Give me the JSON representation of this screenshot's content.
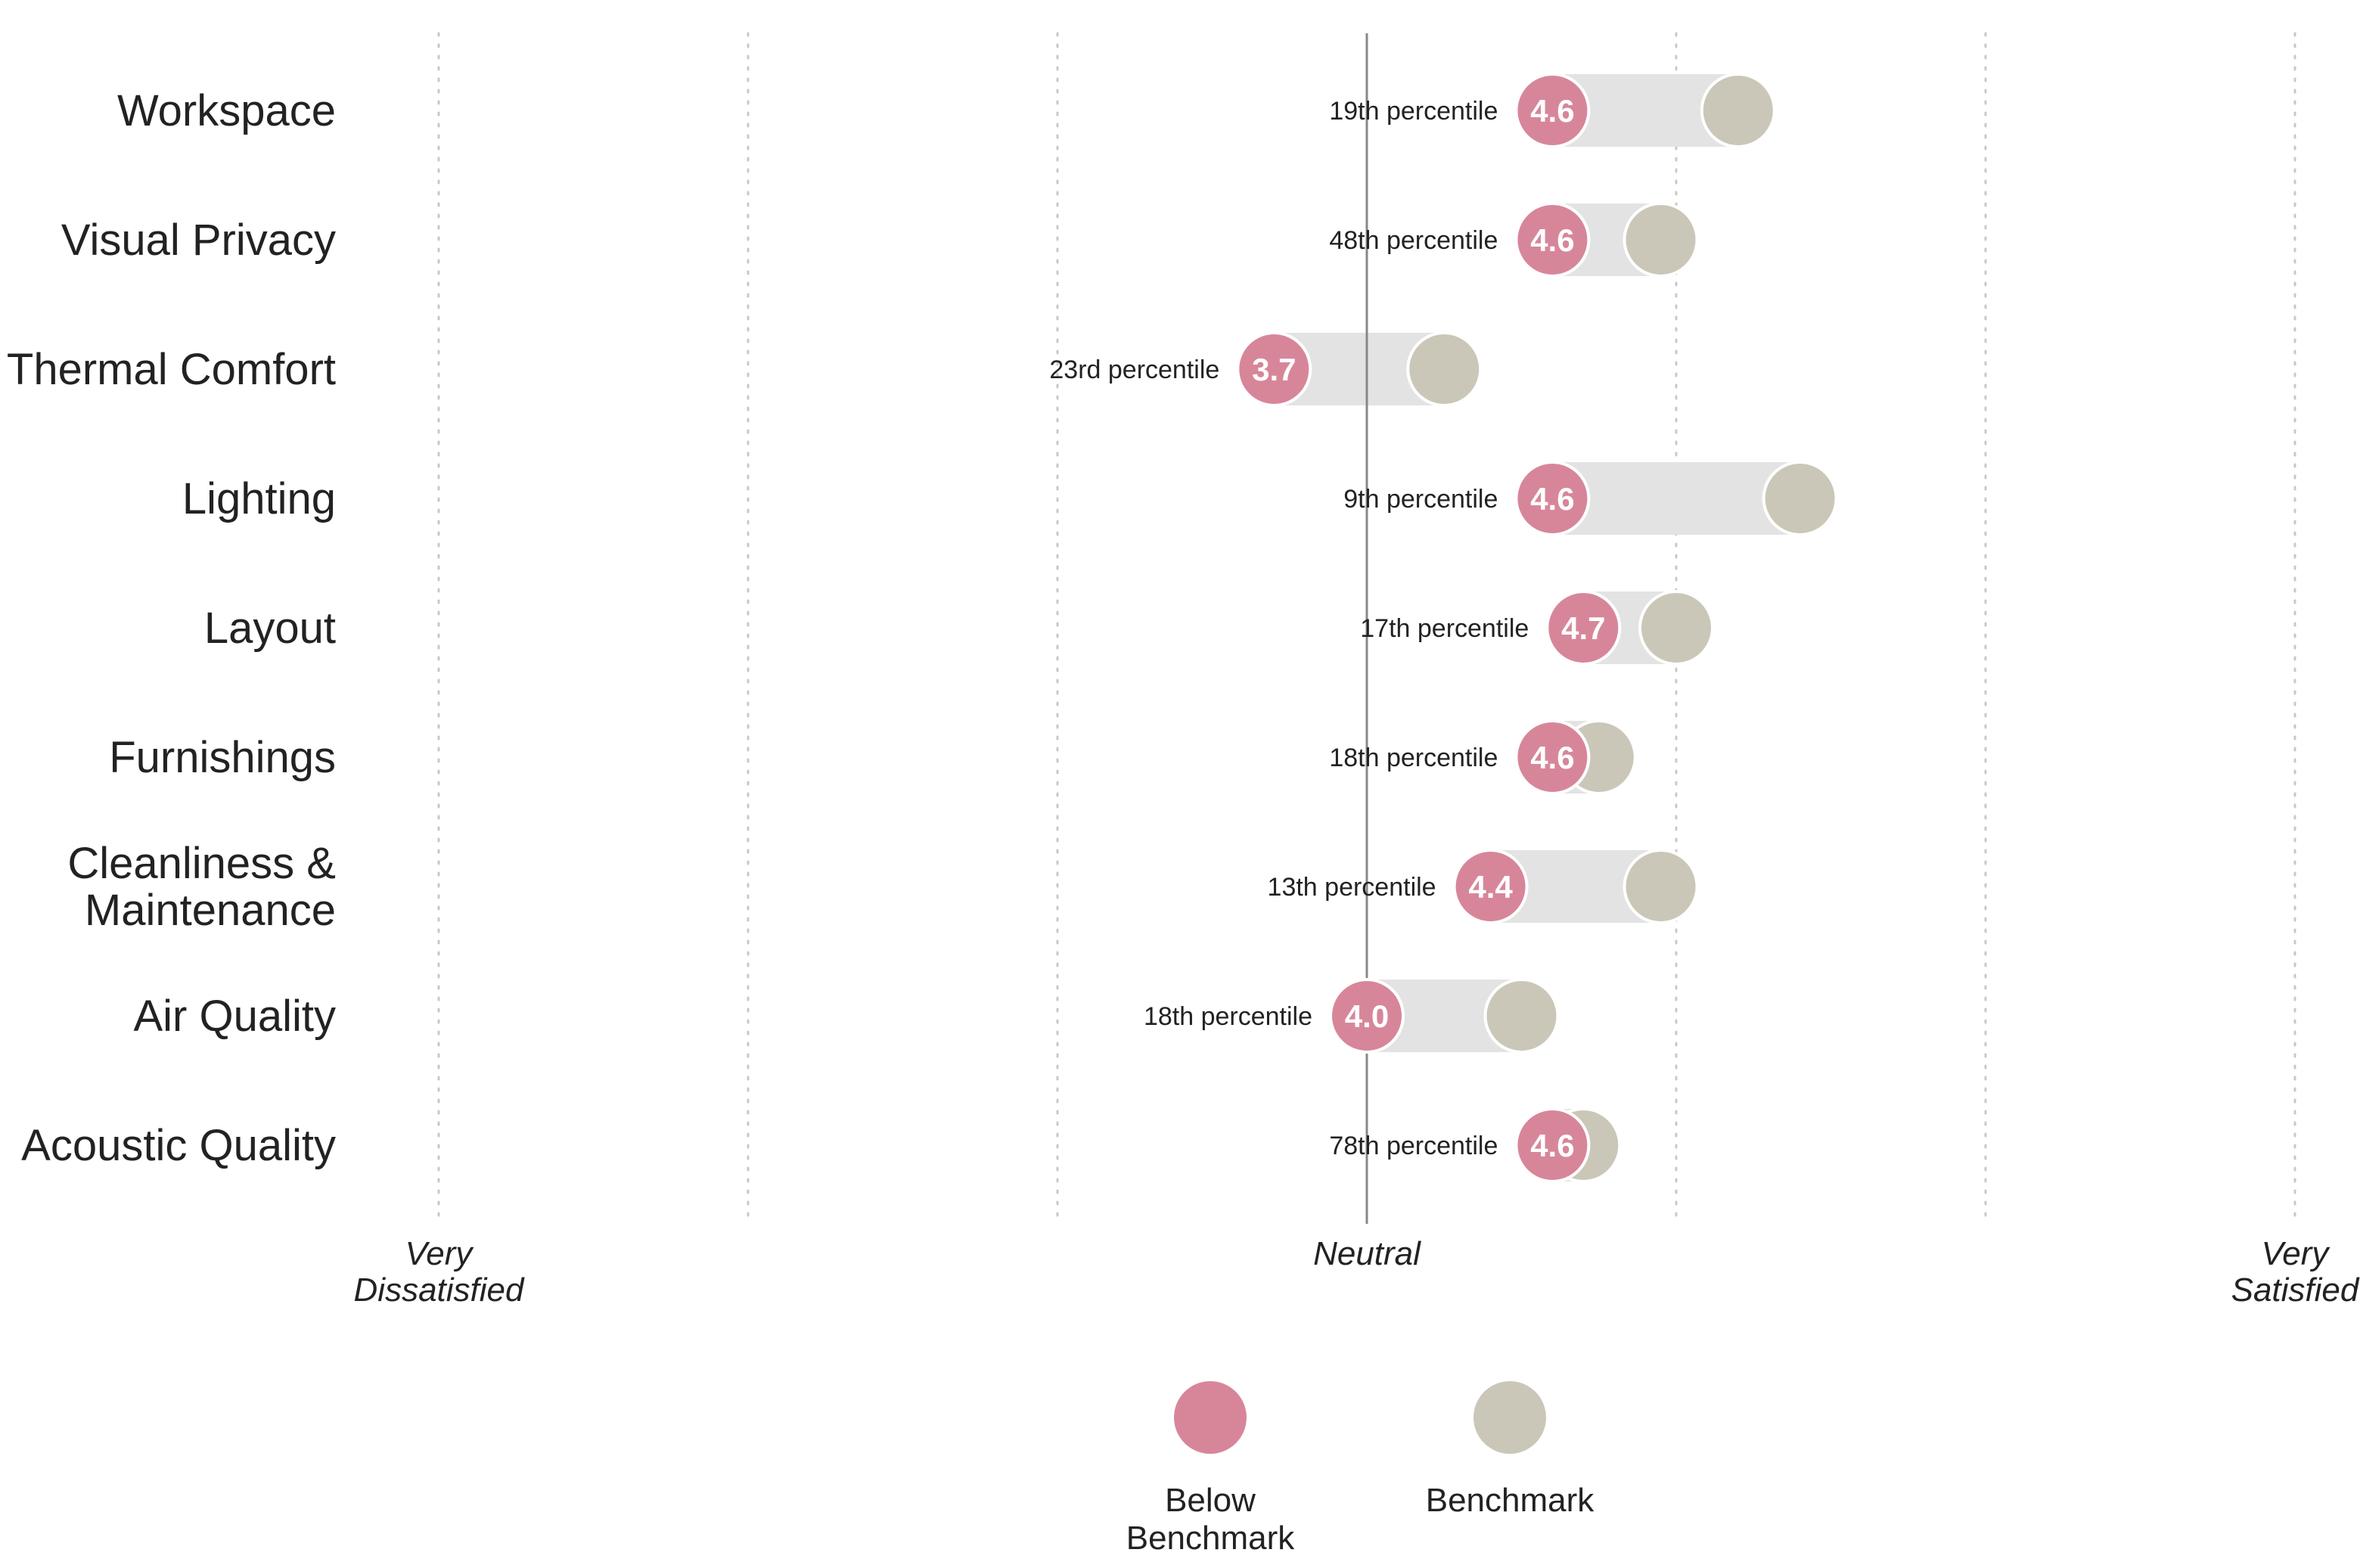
{
  "chart_data": {
    "type": "dumbbell",
    "title": "",
    "xlim": [
      1,
      7
    ],
    "x_ticks": [
      1,
      2,
      3,
      4,
      5,
      6,
      7
    ],
    "neutral_value": 4,
    "grid": true,
    "axis_labels": [
      {
        "value": 1,
        "lines": [
          "Very",
          "Dissatisfied"
        ]
      },
      {
        "value": 4,
        "lines": [
          "Neutral"
        ]
      },
      {
        "value": 7,
        "lines": [
          "Very",
          "Satisfied"
        ]
      }
    ],
    "categories": [
      {
        "lines": [
          "Workspace"
        ]
      },
      {
        "lines": [
          "Visual Privacy"
        ]
      },
      {
        "lines": [
          "Thermal Comfort"
        ]
      },
      {
        "lines": [
          "Lighting"
        ]
      },
      {
        "lines": [
          "Layout"
        ]
      },
      {
        "lines": [
          "Furnishings"
        ]
      },
      {
        "lines": [
          "Cleanliness &",
          "Maintenance"
        ]
      },
      {
        "lines": [
          "Air Quality"
        ]
      },
      {
        "lines": [
          "Acoustic Quality"
        ]
      }
    ],
    "series": [
      {
        "name": "Below Benchmark",
        "values": [
          4.6,
          4.6,
          3.7,
          4.6,
          4.7,
          4.6,
          4.4,
          4.0,
          4.6
        ],
        "labels": [
          "4.6",
          "4.6",
          "3.7",
          "4.6",
          "4.7",
          "4.6",
          "4.4",
          "4.0",
          "4.6"
        ],
        "percentiles": [
          "19th percentile",
          "48th percentile",
          "23rd percentile",
          "9th percentile",
          "17th percentile",
          "18th percentile",
          "13th percentile",
          "18th percentile",
          "78th percentile"
        ]
      },
      {
        "name": "Benchmark",
        "values": [
          5.2,
          4.95,
          4.25,
          5.4,
          5.0,
          4.75,
          4.95,
          4.5,
          4.7
        ]
      }
    ],
    "legend": {
      "position": "bottom-center",
      "items": [
        {
          "lines": [
            "Below",
            "Benchmark"
          ]
        },
        {
          "lines": [
            "Benchmark"
          ]
        }
      ]
    }
  },
  "colors": {
    "below_benchmark": "#D7869A",
    "benchmark": "#CBC7B8",
    "range_bar": "#E3E3E3",
    "grid": "#C8C8C8",
    "neutral_line": "#888888",
    "marker_outline": "#FFFFFF"
  }
}
